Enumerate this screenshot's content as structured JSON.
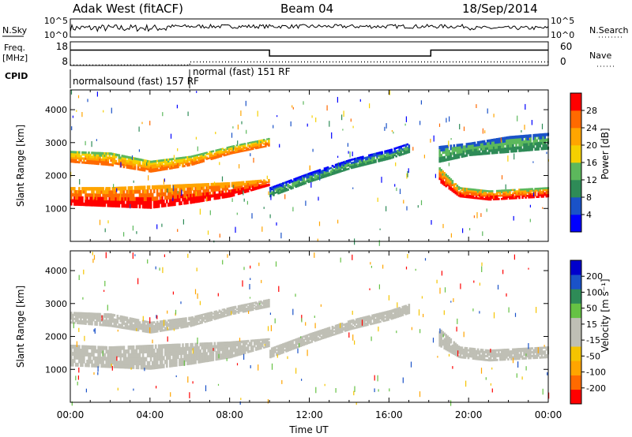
{
  "header": {
    "station": "Adak West (fitACF)",
    "beam": "Beam 04",
    "date": "18/Sep/2014"
  },
  "side_labels": {
    "nsky": "N.Sky",
    "nsearch": "N.Search",
    "freq": "Freq.",
    "freq_unit": "[MHz]",
    "nave": "Nave",
    "cpid": "CPID"
  },
  "colors": {
    "power_scale": [
      "#0000ff",
      "#1a52c8",
      "#2e8b57",
      "#5cb85c",
      "#f5d000",
      "#ffa500",
      "#ff6a00",
      "#ff0000"
    ],
    "velocity_scale": [
      "#ff0000",
      "#ff6a00",
      "#ffa500",
      "#f5c400",
      "#bfbfb5",
      "#bfbfb5",
      "#66c244",
      "#2e8b57",
      "#1a52c8",
      "#0000cc"
    ],
    "ground_scatter": "#bfbfb5"
  },
  "chart_data": [
    {
      "type": "line",
      "panel": "noise",
      "left_axis": {
        "ticks": [
          "10^5",
          "10^0"
        ]
      },
      "right_axis": {
        "ticks": [
          "10^5",
          "10^0"
        ]
      }
    },
    {
      "type": "line",
      "panel": "frequency / nave",
      "left_axis": {
        "ticks": [
          "18",
          "8"
        ]
      },
      "right_axis": {
        "ticks": [
          "60",
          "0"
        ]
      },
      "series_freq": {
        "x": [
          0,
          10,
          10,
          18.1,
          18.1,
          24
        ],
        "y": [
          14.5,
          14.5,
          12.0,
          12.0,
          14.5,
          14.5
        ]
      },
      "series_nave": {
        "x": [
          0,
          6,
          6,
          24
        ],
        "y": [
          1,
          1,
          9,
          9
        ]
      }
    },
    {
      "type": "table",
      "panel": "cpid",
      "programs": [
        {
          "label": "normalsound (fast) 157 RF",
          "start": 0
        },
        {
          "label": "normal (fast) 151 RF",
          "start": 6
        }
      ]
    },
    {
      "type": "heatmap",
      "panel": "power",
      "ylabel": "Slant Range [km]",
      "yticks": [
        1000,
        2000,
        3000,
        4000
      ],
      "ylim": [
        0,
        4600
      ],
      "xlim": [
        0,
        24
      ],
      "colorbar_label": "Power [dB]",
      "colorbar_ticks": [
        "28",
        "24",
        "20",
        "16",
        "12",
        "8",
        "4"
      ],
      "bands": [
        {
          "x": [
            0,
            2,
            4,
            6,
            8,
            10
          ],
          "lower": [
            1100,
            1050,
            1000,
            1150,
            1350,
            1700
          ],
          "upper": [
            1650,
            1650,
            1700,
            1750,
            1800,
            1900
          ],
          "colors": [
            "#ff0000",
            "#ff6a00",
            "#ffa500"
          ]
        },
        {
          "x": [
            0,
            2,
            4,
            6,
            8,
            10
          ],
          "lower": [
            2400,
            2300,
            2100,
            2300,
            2650,
            2900
          ],
          "upper": [
            2750,
            2700,
            2450,
            2600,
            2900,
            3150
          ],
          "colors": [
            "#ff6a00",
            "#ffa500",
            "#f5d000",
            "#5cb85c"
          ]
        },
        {
          "x": [
            10,
            12,
            14,
            16,
            17
          ],
          "lower": [
            1350,
            1800,
            2200,
            2500,
            2700
          ],
          "upper": [
            1650,
            2100,
            2500,
            2800,
            3000
          ],
          "colors": [
            "#2e8b57",
            "#5cb85c",
            "#1a52c8",
            "#0000ff"
          ]
        },
        {
          "x": [
            18.5,
            19.5,
            21,
            22.5,
            24
          ],
          "lower": [
            1800,
            1350,
            1250,
            1300,
            1350
          ],
          "upper": [
            2250,
            1650,
            1550,
            1600,
            1650
          ],
          "colors": [
            "#ff0000",
            "#ff6a00",
            "#ffa500",
            "#5cb85c"
          ]
        },
        {
          "x": [
            18.5,
            20,
            22,
            24
          ],
          "lower": [
            2400,
            2600,
            2700,
            2800
          ],
          "upper": [
            2900,
            3000,
            3200,
            3300
          ],
          "colors": [
            "#2e8b57",
            "#5cb85c",
            "#1a52c8"
          ]
        }
      ]
    },
    {
      "type": "heatmap",
      "panel": "velocity",
      "xlabel": "Time UT",
      "xticks": [
        "00:00",
        "04:00",
        "08:00",
        "12:00",
        "16:00",
        "20:00",
        "00:00"
      ],
      "ylabel": "Slant Range [km]",
      "yticks": [
        1000,
        2000,
        3000,
        4000
      ],
      "ylim": [
        0,
        4600
      ],
      "xlim": [
        0,
        24
      ],
      "colorbar_label": "Velocity [m s⁻¹]",
      "colorbar_ticks": [
        "200",
        "100",
        "50",
        "15",
        "-15",
        "-50",
        "-100",
        "-200"
      ],
      "bands": [
        {
          "x": [
            0,
            2,
            4,
            6,
            8,
            10
          ],
          "lower": [
            1100,
            1050,
            1000,
            1150,
            1350,
            1700
          ],
          "upper": [
            1750,
            1700,
            1750,
            1800,
            1850,
            1950
          ],
          "colors": [
            "#bfbfb5"
          ]
        },
        {
          "x": [
            0,
            2,
            4,
            6,
            8,
            10
          ],
          "lower": [
            2400,
            2300,
            2100,
            2300,
            2650,
            2900
          ],
          "upper": [
            2750,
            2700,
            2450,
            2600,
            2900,
            3150
          ],
          "colors": [
            "#bfbfb5"
          ]
        },
        {
          "x": [
            10,
            12,
            14,
            16,
            17
          ],
          "lower": [
            1350,
            1800,
            2200,
            2500,
            2700
          ],
          "upper": [
            1650,
            2100,
            2500,
            2800,
            3000
          ],
          "colors": [
            "#bfbfb5"
          ]
        },
        {
          "x": [
            18.5,
            19.5,
            21,
            22.5,
            24
          ],
          "lower": [
            1700,
            1350,
            1250,
            1300,
            1350
          ],
          "upper": [
            2250,
            1700,
            1600,
            1650,
            1700
          ],
          "colors": [
            "#bfbfb5"
          ]
        }
      ]
    }
  ]
}
